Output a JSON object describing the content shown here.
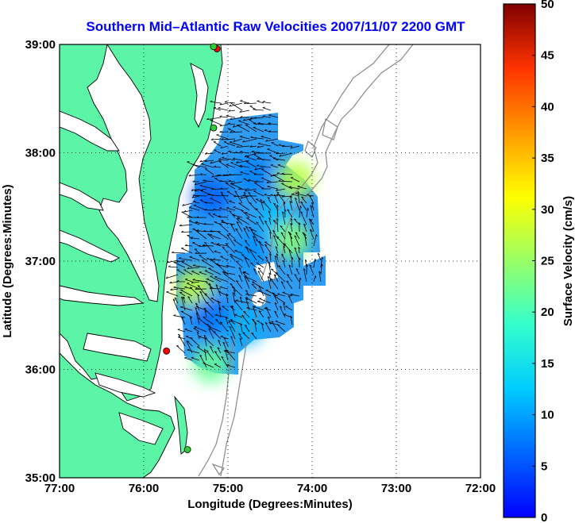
{
  "chart_data": {
    "type": "quiver-map",
    "title": "Southern Mid–Atlantic Raw Velocities 2007/11/07 2200 GMT",
    "xlabel": "Longitude (Degrees:Minutes)",
    "ylabel": "Latitude (Degrees:Minutes)",
    "xlim": [
      -77,
      -72
    ],
    "ylim": [
      35,
      39
    ],
    "x_ticks": [
      {
        "value": -77,
        "label": "77:00"
      },
      {
        "value": -76,
        "label": "76:00"
      },
      {
        "value": -75,
        "label": "75:00"
      },
      {
        "value": -74,
        "label": "74:00"
      },
      {
        "value": -73,
        "label": "73:00"
      },
      {
        "value": -72,
        "label": "72:00"
      }
    ],
    "y_ticks": [
      {
        "value": 35,
        "label": "35:00"
      },
      {
        "value": 36,
        "label": "36:00"
      },
      {
        "value": 37,
        "label": "37:00"
      },
      {
        "value": 38,
        "label": "38:00"
      },
      {
        "value": 39,
        "label": "39:00"
      }
    ],
    "grid": true,
    "colorbar": {
      "label": "Surface Velocity (cm/s)",
      "range": [
        0,
        50
      ],
      "ticks": [
        0,
        5,
        10,
        15,
        20,
        25,
        30,
        35,
        40,
        45,
        50
      ],
      "colormap": "jet",
      "position": "right"
    },
    "land_color": "#5cf5a8",
    "stations": [
      {
        "lon": -75.13,
        "lat": 38.96,
        "color": "#ff0000"
      },
      {
        "lon": -75.17,
        "lat": 38.98,
        "color": "#33cc33"
      },
      {
        "lon": -75.17,
        "lat": 38.23,
        "color": "#33cc33"
      },
      {
        "lon": -75.73,
        "lat": 36.17,
        "color": "#ff0000"
      },
      {
        "lon": -75.48,
        "lat": 35.26,
        "color": "#33cc33"
      }
    ],
    "velocity_patches": [
      {
        "lon": -75.2,
        "lat": 37.6,
        "speed": 6
      },
      {
        "lon": -74.7,
        "lat": 37.8,
        "speed": 8
      },
      {
        "lon": -74.4,
        "lat": 37.4,
        "speed": 12
      },
      {
        "lon": -74.2,
        "lat": 37.75,
        "speed": 27
      },
      {
        "lon": -74.25,
        "lat": 37.2,
        "speed": 24
      },
      {
        "lon": -75.4,
        "lat": 36.75,
        "speed": 28
      },
      {
        "lon": -75.2,
        "lat": 36.5,
        "speed": 7
      },
      {
        "lon": -74.8,
        "lat": 36.4,
        "speed": 11
      },
      {
        "lon": -75.2,
        "lat": 36.05,
        "speed": 22
      },
      {
        "lon": -74.7,
        "lat": 37.1,
        "speed": 9
      }
    ]
  }
}
